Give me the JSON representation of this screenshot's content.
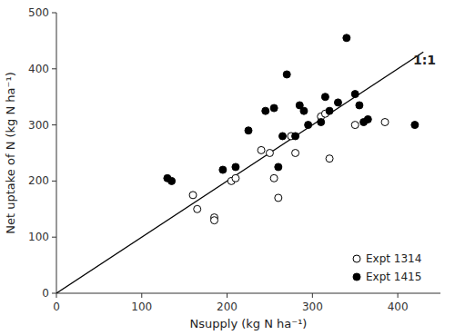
{
  "chart_data": {
    "type": "scatter",
    "xlabel": "Nsupply (kg N ha⁻¹)",
    "ylabel": "Net uptake of N (kg N ha⁻¹)",
    "xlim": [
      0,
      450
    ],
    "ylim": [
      0,
      500
    ],
    "xticks": [
      0,
      100,
      200,
      300,
      400
    ],
    "yticks": [
      0,
      100,
      200,
      300,
      400,
      500
    ],
    "grid": false,
    "legend": "lower right",
    "series": [
      {
        "type": "line",
        "color": "black",
        "line_style": "solid",
        "x": [
          0,
          430
        ],
        "values": [
          0,
          430
        ]
      },
      {
        "name": "Expt 1314",
        "type": "scatter",
        "color": "black",
        "marker": "open-circle",
        "x": [
          160,
          165,
          185,
          185,
          205,
          210,
          240,
          250,
          255,
          260,
          275,
          280,
          310,
          315,
          320,
          350,
          385
        ],
        "values": [
          175,
          150,
          135,
          130,
          200,
          205,
          255,
          250,
          205,
          170,
          280,
          250,
          315,
          320,
          240,
          300,
          305
        ]
      },
      {
        "name": "Expt 1415",
        "type": "scatter",
        "color": "black",
        "marker": "circle",
        "x": [
          130,
          135,
          195,
          210,
          225,
          245,
          255,
          260,
          265,
          270,
          280,
          285,
          290,
          295,
          310,
          315,
          320,
          330,
          340,
          350,
          355,
          360,
          365,
          420
        ],
        "values": [
          205,
          200,
          220,
          225,
          290,
          325,
          330,
          225,
          280,
          390,
          280,
          335,
          325,
          300,
          305,
          350,
          325,
          340,
          455,
          355,
          335,
          305,
          310,
          300
        ]
      }
    ],
    "annotations": [
      {
        "text": "1:1",
        "x": 418,
        "y": 405
      }
    ]
  }
}
